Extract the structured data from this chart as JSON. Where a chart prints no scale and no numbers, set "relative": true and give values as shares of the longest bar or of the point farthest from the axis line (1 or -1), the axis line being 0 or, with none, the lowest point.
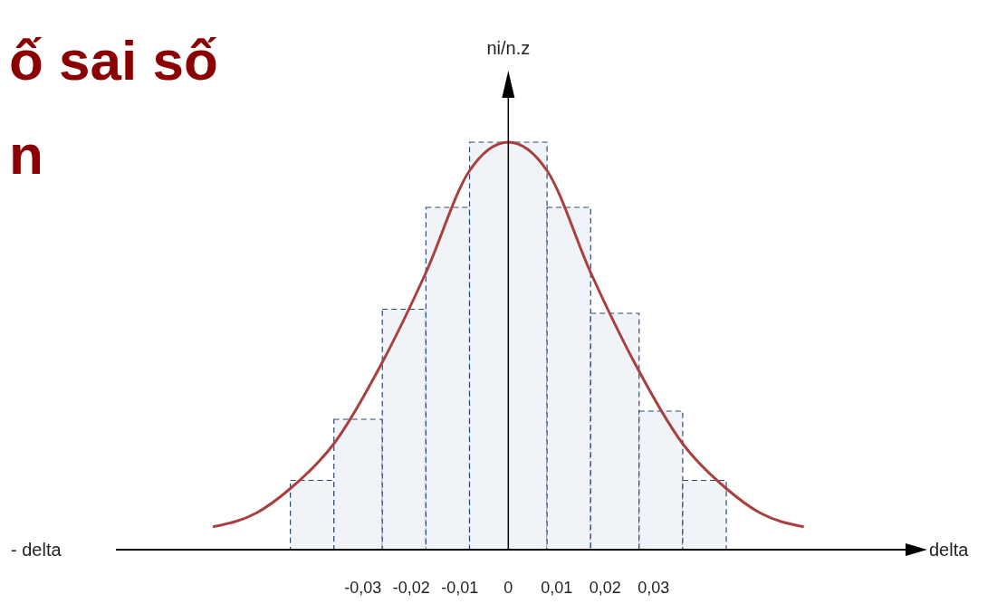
{
  "chart_data": {
    "type": "histogram",
    "title": "ố sai số",
    "subtitle": "n",
    "ylabel": "ni/n.z",
    "xlabel": "delta",
    "annotations": [
      "- delta"
    ],
    "relative": true,
    "bins": [
      -0.045,
      -0.036,
      -0.026,
      -0.017,
      -0.008,
      0.008,
      0.017,
      0.027,
      0.036,
      0.045
    ],
    "values": [
      0.17,
      0.32,
      0.59,
      0.84,
      1.0,
      0.84,
      0.58,
      0.34,
      0.17
    ],
    "color": "#f0f4f9",
    "xlim": [
      -0.081,
      0.082
    ],
    "xticks": [
      {
        "value": -0.03,
        "label": "-0,03"
      },
      {
        "value": -0.02,
        "label": "-0,02"
      },
      {
        "value": -0.01,
        "label": "-0,01"
      },
      0,
      {
        "value": 0.01,
        "label": "0,01"
      },
      {
        "value": 0.02,
        "label": "0,02"
      },
      {
        "value": 0.03,
        "label": "0,03"
      }
    ],
    "series": [
      {
        "type": "line",
        "color": "#a9403e",
        "x": [
          -0.061,
          -0.052,
          -0.045,
          -0.036,
          -0.026,
          -0.017,
          -0.008,
          0,
          0.008,
          0.017,
          0.026,
          0.036,
          0.045,
          0.052,
          0.061
        ],
        "values": [
          0.056,
          0.09,
          0.15,
          0.26,
          0.46,
          0.68,
          0.93,
          1.0,
          0.93,
          0.68,
          0.46,
          0.26,
          0.15,
          0.09,
          0.056
        ]
      }
    ]
  }
}
